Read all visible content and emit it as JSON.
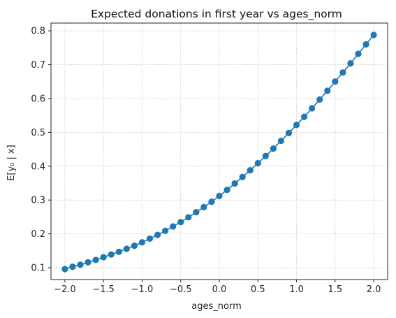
{
  "chart_data": {
    "type": "line",
    "title": "Expected donations in first year vs ages_norm",
    "xlabel": "ages_norm",
    "ylabel": "E[y₀ | x]",
    "xlim": [
      -2.18,
      2.18
    ],
    "ylim": [
      0.065,
      0.823
    ],
    "xticks": [
      -2.0,
      -1.5,
      -1.0,
      -0.5,
      0.0,
      0.5,
      1.0,
      1.5,
      2.0
    ],
    "xtick_labels": [
      "−2.0",
      "−1.5",
      "−1.0",
      "−0.5",
      "0.0",
      "0.5",
      "1.0",
      "1.5",
      "2.0"
    ],
    "yticks": [
      0.1,
      0.2,
      0.3,
      0.4,
      0.5,
      0.6,
      0.7,
      0.8
    ],
    "ytick_labels": [
      "0.1",
      "0.2",
      "0.3",
      "0.4",
      "0.5",
      "0.6",
      "0.7",
      "0.8"
    ],
    "grid": true,
    "color": "#1f77b4",
    "marker": "circle",
    "series": [
      {
        "x": [
          -2.0,
          -1.9,
          -1.8,
          -1.7,
          -1.6,
          -1.5,
          -1.4,
          -1.3,
          -1.2,
          -1.1,
          -1.0,
          -0.9,
          -0.8,
          -0.7,
          -0.6,
          -0.5,
          -0.4,
          -0.3,
          -0.2,
          -0.1,
          0.0,
          0.1,
          0.2,
          0.3,
          0.4,
          0.5,
          0.6,
          0.7,
          0.8,
          0.9,
          1.0,
          1.1,
          1.2,
          1.3,
          1.4,
          1.5,
          1.6,
          1.7,
          1.8,
          1.9,
          2.0
        ],
        "y": [
          0.096,
          0.103,
          0.109,
          0.116,
          0.123,
          0.131,
          0.139,
          0.147,
          0.156,
          0.165,
          0.175,
          0.186,
          0.197,
          0.209,
          0.222,
          0.235,
          0.249,
          0.264,
          0.279,
          0.295,
          0.312,
          0.33,
          0.349,
          0.368,
          0.388,
          0.409,
          0.43,
          0.452,
          0.475,
          0.498,
          0.522,
          0.546,
          0.571,
          0.597,
          0.623,
          0.65,
          0.677,
          0.704,
          0.732,
          0.76,
          0.788
        ]
      }
    ]
  }
}
